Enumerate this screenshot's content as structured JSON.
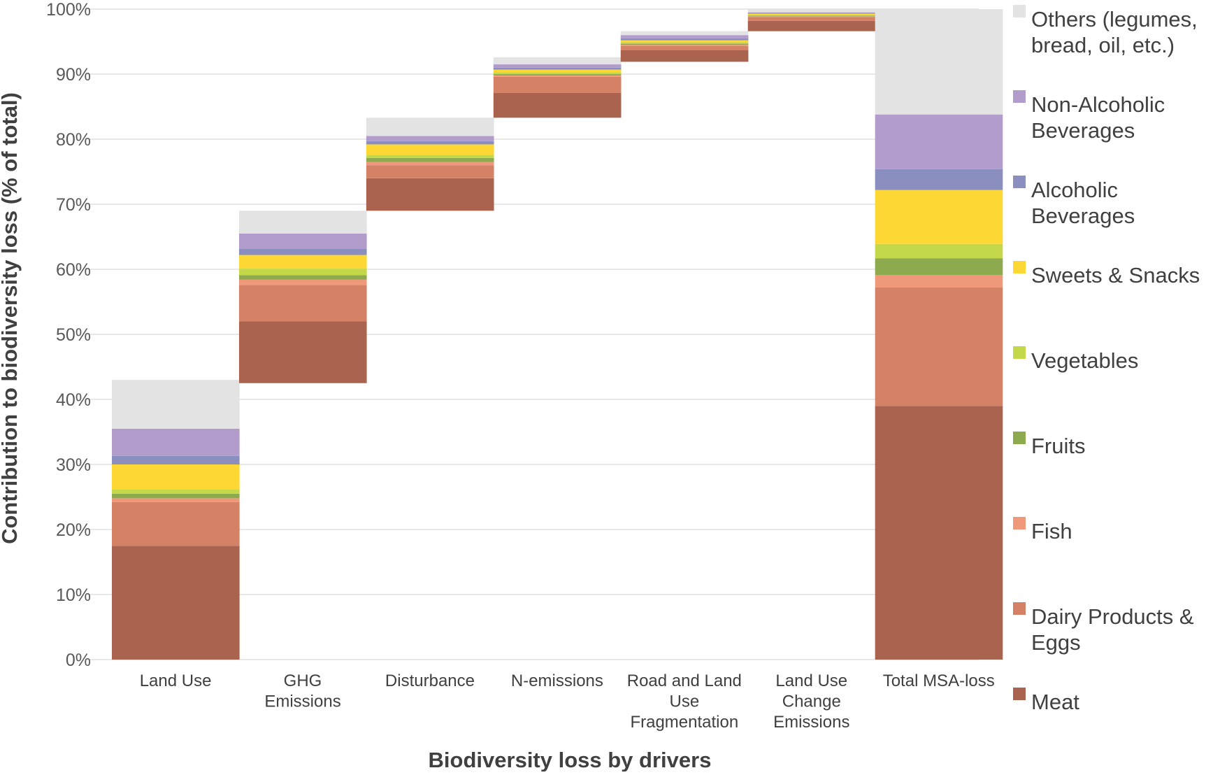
{
  "chart_data": {
    "type": "bar",
    "subtype": "waterfall-stacked",
    "xlabel": "Biodiversity loss by drivers",
    "ylabel": "Contribution to biodiversity loss (% of total)",
    "ylim": [
      0,
      100
    ],
    "yticks": [
      "0%",
      "10%",
      "20%",
      "30%",
      "40%",
      "50%",
      "60%",
      "70%",
      "80%",
      "90%",
      "100%"
    ],
    "grid": true,
    "legend_position": "right",
    "categories": [
      {
        "name": "Land Use",
        "lines": [
          "Land Use"
        ],
        "base": 0
      },
      {
        "name": "GHG Emissions",
        "lines": [
          "GHG",
          "Emissions"
        ],
        "base": 42.5
      },
      {
        "name": "Disturbance",
        "lines": [
          "Disturbance"
        ],
        "base": 69
      },
      {
        "name": "N-emissions",
        "lines": [
          "N-emissions"
        ],
        "base": 83.3
      },
      {
        "name": "Road and Land Use Fragmentation",
        "lines": [
          "Road and Land",
          "Use",
          "Fragmentation"
        ],
        "base": 91.9
      },
      {
        "name": "Land Use Change Emissions",
        "lines": [
          "Land Use",
          "Change",
          "Emissions"
        ],
        "base": 96.6
      },
      {
        "name": "Total MSA-loss",
        "lines": [
          "Total MSA-loss"
        ],
        "base": 0
      }
    ],
    "series": [
      {
        "name": "Meat",
        "lines": [
          "Meat"
        ],
        "color": "#a9634f",
        "values": [
          17.5,
          9.5,
          5.0,
          3.8,
          1.8,
          1.6,
          39.0
        ]
      },
      {
        "name": "Dairy Products & Eggs",
        "lines": [
          "Dairy Products &",
          "Eggs"
        ],
        "color": "#d48166",
        "values": [
          6.7,
          5.6,
          2.0,
          2.5,
          0.6,
          0.6,
          18.2
        ]
      },
      {
        "name": "Fish",
        "lines": [
          "Fish"
        ],
        "color": "#f0997a",
        "values": [
          0.6,
          0.8,
          0.5,
          0.2,
          0.2,
          0.1,
          1.9
        ]
      },
      {
        "name": "Fruits",
        "lines": [
          "Fruits"
        ],
        "color": "#8eaa4f",
        "values": [
          0.7,
          0.7,
          0.6,
          0.2,
          0.2,
          0.1,
          2.6
        ]
      },
      {
        "name": "Vegetables",
        "lines": [
          "Vegetables"
        ],
        "color": "#c5d84a",
        "values": [
          0.7,
          1.0,
          0.5,
          0.3,
          0.2,
          0.1,
          2.2
        ]
      },
      {
        "name": "Sweets & Snacks",
        "lines": [
          "Sweets & Snacks"
        ],
        "color": "#fdd835",
        "values": [
          3.8,
          2.1,
          1.6,
          0.4,
          0.3,
          0.2,
          8.3
        ]
      },
      {
        "name": "Alcoholic Beverages",
        "lines": [
          "Alcoholic",
          "Beverages"
        ],
        "color": "#8a8fbf",
        "values": [
          1.3,
          1.0,
          0.5,
          0.3,
          0.3,
          0.1,
          3.2
        ]
      },
      {
        "name": "Non-Alcoholic Beverages",
        "lines": [
          "Non-Alcoholic",
          "Beverages"
        ],
        "color": "#b29ccc",
        "values": [
          4.2,
          2.3,
          0.8,
          0.5,
          0.5,
          0.1,
          8.4
        ]
      },
      {
        "name": "Others (legumes, bread, oil, etc.)",
        "lines": [
          "Others (legumes,",
          "bread, oil, etc.)"
        ],
        "color": "#e3e3e3",
        "values": [
          7.5,
          3.5,
          2.8,
          1.1,
          0.6,
          0.5,
          16.2
        ]
      }
    ]
  }
}
